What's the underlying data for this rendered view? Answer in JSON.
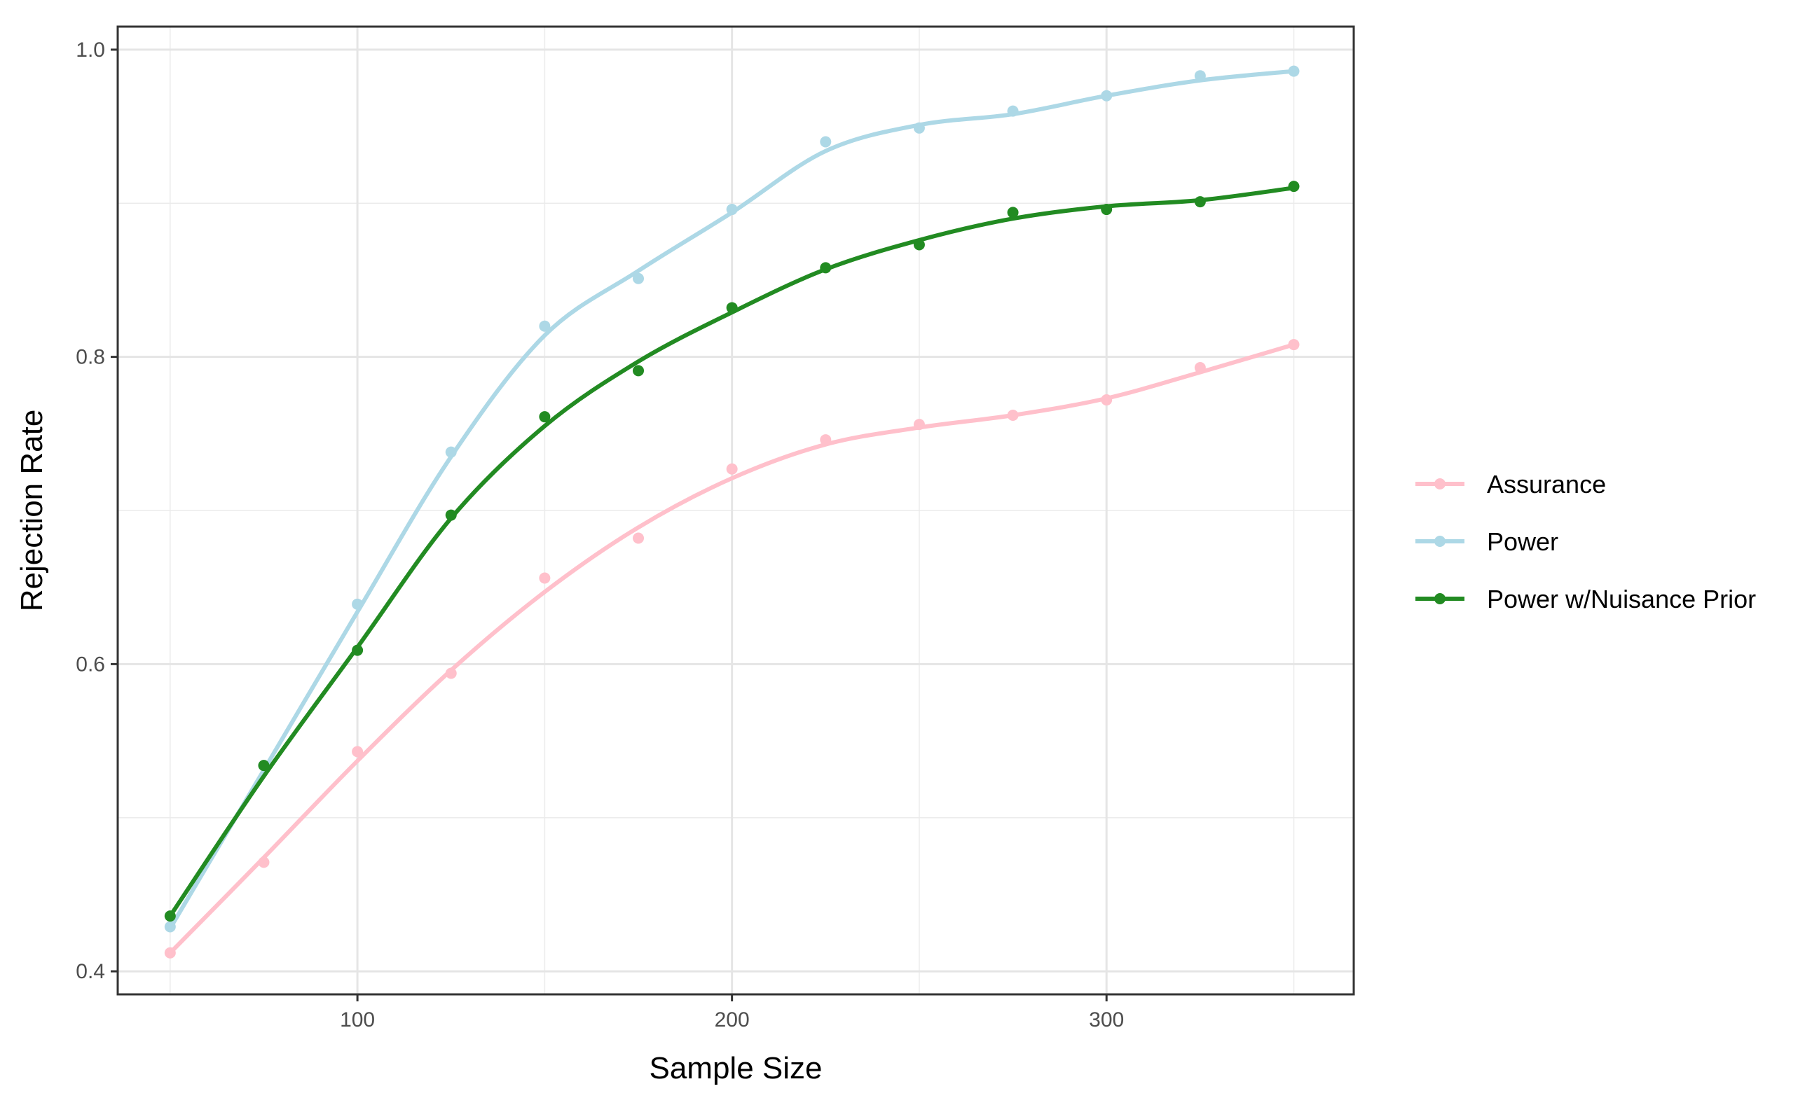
{
  "chart_data": {
    "type": "line",
    "title": "",
    "xlabel": "Sample Size",
    "ylabel": "Rejection Rate",
    "xlim": [
      36,
      366
    ],
    "ylim": [
      0.385,
      1.015
    ],
    "x_ticks": [
      100,
      200,
      300
    ],
    "x_tick_labels": [
      "100",
      "200",
      "300"
    ],
    "y_ticks": [
      0.4,
      0.6,
      0.8,
      1.0
    ],
    "y_tick_labels": [
      "0.4",
      "0.6",
      "0.8",
      "1.0"
    ],
    "y_minor_ticks": [
      0.5,
      0.7,
      0.9
    ],
    "x_minor_ticks": [
      50,
      150,
      250,
      350
    ],
    "grid": true,
    "legend_position": "right",
    "x": [
      50,
      75,
      100,
      125,
      150,
      175,
      200,
      225,
      250,
      275,
      300,
      325,
      350
    ],
    "series": [
      {
        "name": "Assurance",
        "color": "#FFC0CB",
        "points": [
          0.412,
          0.471,
          0.543,
          0.594,
          0.656,
          0.682,
          0.727,
          0.746,
          0.756,
          0.762,
          0.772,
          0.793,
          0.808
        ],
        "smooth": [
          0.412,
          0.474,
          0.537,
          0.596,
          0.647,
          0.689,
          0.721,
          0.743,
          0.754,
          0.762,
          0.773,
          0.79,
          0.808
        ]
      },
      {
        "name": "Power",
        "color": "#ADD8E6",
        "points": [
          0.429,
          0.534,
          0.639,
          0.738,
          0.82,
          0.851,
          0.896,
          0.94,
          0.949,
          0.96,
          0.97,
          0.983,
          0.986
        ],
        "smooth": [
          0.428,
          0.531,
          0.634,
          0.735,
          0.814,
          0.856,
          0.894,
          0.934,
          0.951,
          0.958,
          0.97,
          0.98,
          0.986
        ]
      },
      {
        "name": "Power w/Nuisance Prior",
        "color": "#228B22",
        "points": [
          0.436,
          0.534,
          0.609,
          0.697,
          0.761,
          0.791,
          0.832,
          0.858,
          0.873,
          0.894,
          0.896,
          0.901,
          0.911
        ],
        "smooth": [
          0.436,
          0.527,
          0.611,
          0.695,
          0.755,
          0.797,
          0.829,
          0.857,
          0.876,
          0.89,
          0.898,
          0.902,
          0.91
        ]
      }
    ]
  }
}
